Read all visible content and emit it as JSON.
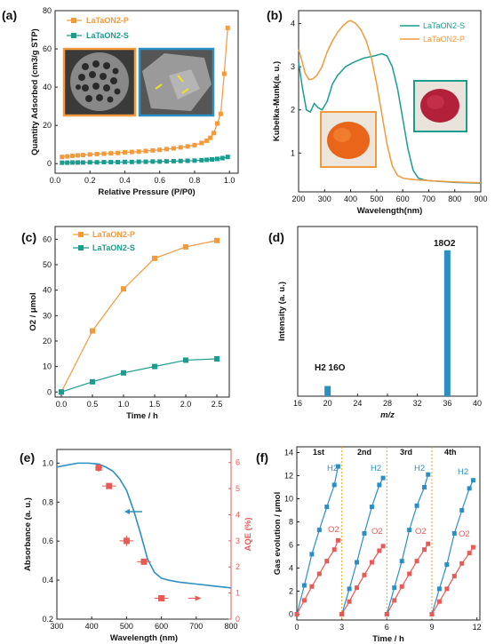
{
  "colors": {
    "orange": "#F39A3C",
    "teal": "#1A9C8E",
    "blue": "#2C8FC4",
    "red": "#E85A55"
  },
  "chart_data": [
    {
      "panel": "(a)",
      "type": "line",
      "xlabel": "Relative Pressure (P/P0)",
      "ylabel": "Quantity Adsorbed (cm3/g STP)",
      "xlim": [
        0,
        1.05
      ],
      "ylim": [
        -5,
        80
      ],
      "xticks": [
        0.0,
        0.2,
        0.4,
        0.6,
        0.8,
        1.0
      ],
      "yticks": [
        0,
        20,
        40,
        60,
        80
      ],
      "tick_labels_x": [
        "0.0",
        "0.2",
        "0.4",
        "0.6",
        "0.8",
        "1.0"
      ],
      "tick_labels_y": [
        "0",
        "20",
        "40",
        "60",
        "80"
      ],
      "series": [
        {
          "name": "LaTaON2-P",
          "color": "#F39A3C",
          "marker": "square",
          "x": [
            0.04,
            0.07,
            0.1,
            0.13,
            0.16,
            0.2,
            0.24,
            0.28,
            0.32,
            0.36,
            0.4,
            0.44,
            0.48,
            0.52,
            0.56,
            0.6,
            0.64,
            0.68,
            0.72,
            0.76,
            0.8,
            0.84,
            0.87,
            0.89,
            0.91,
            0.93,
            0.95,
            0.97,
            0.99
          ],
          "y": [
            3.5,
            3.8,
            4.1,
            4.3,
            4.5,
            4.8,
            5.0,
            5.2,
            5.4,
            5.6,
            5.9,
            6.1,
            6.3,
            6.6,
            6.9,
            7.2,
            7.6,
            8.0,
            8.5,
            9.0,
            9.7,
            10.8,
            12,
            13.5,
            16,
            21,
            26,
            47,
            71
          ]
        },
        {
          "name": "LaTaON2-S",
          "color": "#1A9C8E",
          "marker": "square",
          "x": [
            0.04,
            0.07,
            0.1,
            0.13,
            0.16,
            0.2,
            0.24,
            0.28,
            0.32,
            0.36,
            0.4,
            0.44,
            0.48,
            0.52,
            0.56,
            0.6,
            0.64,
            0.68,
            0.72,
            0.76,
            0.8,
            0.84,
            0.87,
            0.9,
            0.93,
            0.96,
            0.99
          ],
          "y": [
            0.5,
            0.5,
            0.6,
            0.6,
            0.6,
            0.7,
            0.7,
            0.8,
            0.8,
            0.8,
            0.9,
            0.9,
            1.0,
            1.0,
            1.1,
            1.1,
            1.2,
            1.3,
            1.4,
            1.5,
            1.6,
            1.8,
            2.0,
            2.2,
            2.5,
            2.9,
            3.5
          ]
        }
      ]
    },
    {
      "panel": "(b)",
      "type": "line",
      "xlabel": "Wavelength(nm)",
      "ylabel": "Kubelka-Munk(a. u.)",
      "xlim": [
        200,
        900
      ],
      "ylim": [
        0.1,
        4.3
      ],
      "xticks": [
        200,
        300,
        400,
        500,
        600,
        700,
        800,
        900
      ],
      "yticks": [
        1,
        2,
        3,
        4
      ],
      "tick_labels_x": [
        "200",
        "300",
        "400",
        "500",
        "600",
        "700",
        "800",
        "900"
      ],
      "tick_labels_y": [
        "1",
        "2",
        "3",
        "4"
      ],
      "series": [
        {
          "name": "LaTaON2-S",
          "color": "#1A9C8E",
          "x": [
            200,
            215,
            230,
            245,
            260,
            275,
            290,
            310,
            330,
            350,
            380,
            410,
            450,
            490,
            520,
            540,
            560,
            580,
            600,
            620,
            640,
            660,
            680,
            700,
            750,
            800,
            850,
            900
          ],
          "y": [
            3.1,
            2.5,
            2.0,
            1.95,
            2.15,
            2.05,
            2.0,
            2.2,
            2.6,
            2.8,
            3.0,
            3.1,
            3.2,
            3.25,
            3.3,
            3.25,
            3.0,
            2.5,
            1.8,
            1.1,
            0.6,
            0.42,
            0.38,
            0.36,
            0.34,
            0.32,
            0.31,
            0.3
          ]
        },
        {
          "name": "LaTaON2-P",
          "color": "#F39A3C",
          "x": [
            200,
            210,
            225,
            240,
            255,
            270,
            290,
            310,
            330,
            350,
            370,
            390,
            400,
            420,
            440,
            460,
            480,
            500,
            520,
            540,
            560,
            580,
            600,
            620,
            650,
            700,
            800,
            900
          ],
          "y": [
            3.4,
            3.2,
            2.85,
            2.7,
            2.72,
            2.8,
            3.0,
            3.35,
            3.6,
            3.8,
            3.95,
            4.05,
            4.07,
            4.0,
            3.85,
            3.6,
            3.2,
            2.6,
            1.9,
            1.2,
            0.7,
            0.48,
            0.42,
            0.4,
            0.38,
            0.36,
            0.33,
            0.31
          ]
        }
      ]
    },
    {
      "panel": "(c)",
      "type": "line",
      "xlabel": "Time / h",
      "ylabel": "O2 / μmol",
      "xlim": [
        -0.1,
        2.7
      ],
      "ylim": [
        -2,
        65
      ],
      "xticks": [
        0.0,
        0.5,
        1.0,
        1.5,
        2.0,
        2.5
      ],
      "yticks": [
        0,
        10,
        20,
        30,
        40,
        50,
        60
      ],
      "tick_labels_x": [
        "0.0",
        "0.5",
        "1.0",
        "1.5",
        "2.0",
        "2.5"
      ],
      "tick_labels_y": [
        "0",
        "10",
        "20",
        "30",
        "40",
        "50",
        "60"
      ],
      "series": [
        {
          "name": "LaTaON2-P",
          "color": "#F39A3C",
          "marker": "square",
          "x": [
            0,
            0.5,
            1.0,
            1.5,
            2.0,
            2.5
          ],
          "y": [
            0,
            24,
            40.5,
            52.5,
            57,
            59.5
          ]
        },
        {
          "name": "LaTaON2-S",
          "color": "#1A9C8E",
          "marker": "square",
          "x": [
            0,
            0.5,
            1.0,
            1.5,
            2.0,
            2.5
          ],
          "y": [
            0,
            4,
            7.5,
            10,
            12.5,
            13
          ]
        }
      ]
    },
    {
      "panel": "(d)",
      "type": "bar",
      "xlabel": "m/z",
      "ylabel": "Intensity (a. u.)",
      "xlim": [
        16,
        40
      ],
      "ylim": [
        0,
        1
      ],
      "xticks": [
        16,
        20,
        24,
        28,
        32,
        36,
        40
      ],
      "tick_labels_x": [
        "16",
        "20",
        "24",
        "28",
        "32",
        "36",
        "40"
      ],
      "categories": [
        20,
        36
      ],
      "values": [
        0.06,
        0.86
      ],
      "annotations": [
        "H2 16O",
        "18O2"
      ]
    },
    {
      "panel": "(e)",
      "type": "line",
      "xlabel": "Wavelength (nm)",
      "ylabel": "Absorbance (a. u.)",
      "ylabel2": "AQE (%)",
      "xlim": [
        300,
        800
      ],
      "ylim": [
        0.2,
        1.07
      ],
      "ylim2": [
        0,
        6.5
      ],
      "xticks": [
        300,
        400,
        500,
        600,
        700,
        800
      ],
      "yticks": [
        0.2,
        0.4,
        0.6,
        0.8,
        1.0
      ],
      "yticks2": [
        0,
        1,
        2,
        3,
        4,
        5,
        6
      ],
      "tick_labels_x": [
        "300",
        "400",
        "500",
        "600",
        "700",
        "800"
      ],
      "tick_labels_y": [
        "0.2",
        "0.4",
        "0.6",
        "0.8",
        "1.0"
      ],
      "tick_labels_y2": [
        "0",
        "1",
        "2",
        "3",
        "4",
        "5",
        "6"
      ],
      "absorbance": {
        "color": "#2C8FC4",
        "x": [
          300,
          330,
          360,
          390,
          420,
          440,
          460,
          480,
          500,
          520,
          540,
          560,
          580,
          600,
          620,
          650,
          700,
          750,
          800
        ],
        "y": [
          0.98,
          0.99,
          1.0,
          1.0,
          0.995,
          0.98,
          0.96,
          0.92,
          0.86,
          0.76,
          0.64,
          0.51,
          0.44,
          0.41,
          0.4,
          0.39,
          0.38,
          0.37,
          0.36
        ]
      },
      "aqe": {
        "color": "#E85A55",
        "x": [
          420,
          450,
          500,
          550,
          600
        ],
        "y": [
          5.8,
          5.1,
          3.0,
          2.2,
          0.8
        ],
        "xerr": [
          10,
          20,
          20,
          20,
          20
        ],
        "yerr": [
          0.15,
          0,
          0.2,
          0,
          0
        ]
      }
    },
    {
      "panel": "(f)",
      "type": "scatter",
      "xlabel": "Time / h",
      "ylabel": "Gas evolution / μmol",
      "xlim": [
        0,
        12.2
      ],
      "ylim": [
        -0.5,
        14.5
      ],
      "xticks": [
        0,
        3,
        6,
        9,
        12
      ],
      "yticks": [
        0,
        2,
        4,
        6,
        8,
        10,
        12,
        14
      ],
      "tick_labels_x": [
        "0",
        "3",
        "6",
        "9",
        "12"
      ],
      "tick_labels_y": [
        "0",
        "2",
        "4",
        "6",
        "8",
        "10",
        "12",
        "14"
      ],
      "cycles": [
        "1st",
        "2nd",
        "3rd",
        "4th"
      ],
      "cycle_lines_at": [
        3,
        6,
        9
      ],
      "series": [
        {
          "name": "H2",
          "color": "#2C8FC4",
          "marker": "square",
          "x": [
            0,
            0.5,
            1,
            1.5,
            2,
            2.5,
            2.75,
            3,
            3.5,
            4,
            4.5,
            5,
            5.5,
            5.75,
            6,
            6.5,
            7,
            7.5,
            8,
            8.5,
            8.75,
            9,
            9.5,
            10,
            10.5,
            11,
            11.5,
            11.75
          ],
          "y": [
            0,
            2.5,
            5.2,
            7.3,
            9.3,
            11.2,
            12.8,
            0,
            2.2,
            4.5,
            7.0,
            9.3,
            11.2,
            11.8,
            0,
            2.3,
            4.6,
            7.3,
            9.4,
            11.0,
            12.1,
            0,
            2.2,
            4.3,
            7.0,
            9.0,
            10.9,
            11.6
          ]
        },
        {
          "name": "O2",
          "color": "#E85A55",
          "marker": "square",
          "x": [
            0,
            0.5,
            1,
            1.5,
            2,
            2.5,
            2.75,
            3,
            3.5,
            4,
            4.5,
            5,
            5.5,
            5.75,
            6,
            6.5,
            7,
            7.5,
            8,
            8.5,
            8.75,
            9,
            9.5,
            10,
            10.5,
            11,
            11.5,
            11.75
          ],
          "y": [
            0,
            1.2,
            2.4,
            3.5,
            4.6,
            5.6,
            6.4,
            0,
            1.1,
            2.3,
            3.4,
            4.5,
            5.5,
            5.9,
            0,
            1.2,
            2.4,
            3.5,
            4.6,
            5.6,
            6.1,
            0,
            1.1,
            2.2,
            3.3,
            4.4,
            5.3,
            5.8
          ]
        }
      ]
    }
  ],
  "labels": {
    "a": "(a)",
    "b": "(b)",
    "c": "(c)",
    "d": "(d)",
    "e": "(e)",
    "f": "(f)",
    "legend_a_p": "LaTaON2-P",
    "legend_a_s": "LaTaON2-S",
    "legend_b_s": "LaTaON2-S",
    "legend_b_p": "LaTaON2-P",
    "legend_c_p": "LaTaON2-P",
    "legend_c_s": "LaTaON2-S",
    "d_h2o": "H2 16O",
    "d_o2": "18O2",
    "f_h2": "H2",
    "f_o2": "O2",
    "f_1st": "1st",
    "f_2nd": "2nd",
    "f_3rd": "3rd",
    "f_4th": "4th"
  }
}
